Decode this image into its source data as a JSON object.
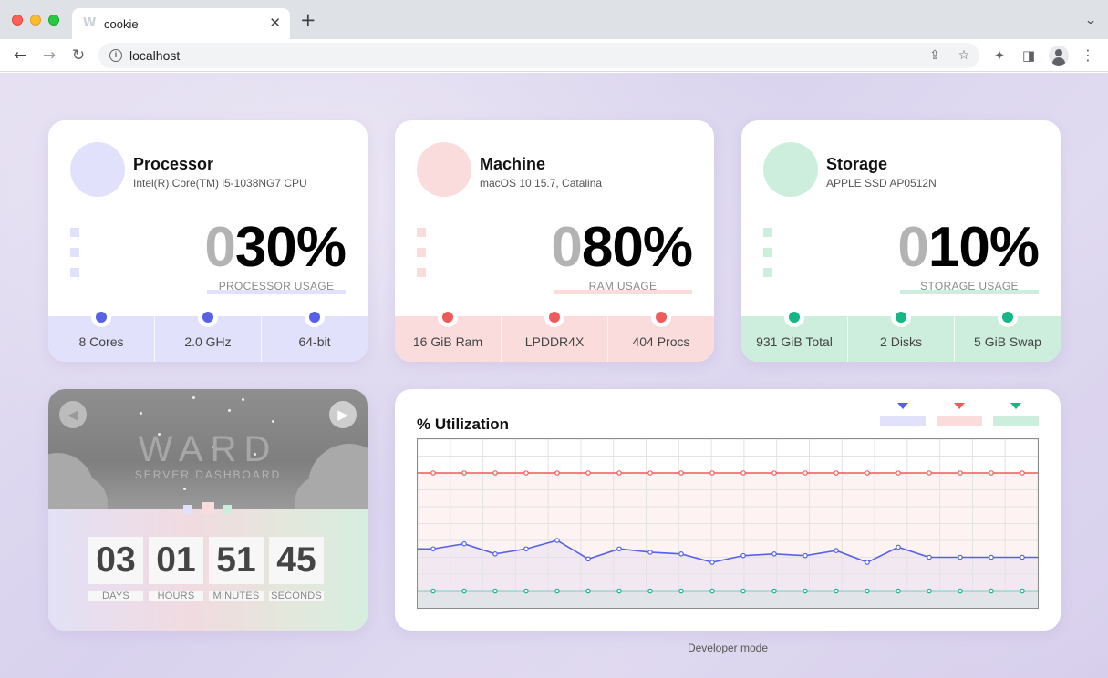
{
  "browser": {
    "tab_favicon": "W",
    "tab_title": "cookie",
    "url": "localhost",
    "icons": [
      "close-icon",
      "plus-icon",
      "chevron-down-icon",
      "back-arrow-icon",
      "forward-arrow-icon",
      "reload-icon",
      "info-icon",
      "share-icon",
      "star-icon",
      "puzzle-icon",
      "sidebar-icon",
      "profile-icon",
      "kebab-menu-icon"
    ]
  },
  "colors": {
    "processor": "#5661e5",
    "machine": "#ef5b5b",
    "storage": "#14b785",
    "processor_soft": "#e2e1fb",
    "machine_soft": "#fadcdc",
    "storage_soft": "#cdeedd"
  },
  "processor": {
    "title": "Processor",
    "subtitle": "Intel(R) Core(TM) i5-1038NG7 CPU",
    "usage_lead": "0",
    "usage_value": "30%",
    "usage_label": "PROCESSOR USAGE",
    "stats": [
      "8 Cores",
      "2.0 GHz",
      "64-bit"
    ]
  },
  "machine": {
    "title": "Machine",
    "subtitle": "macOS 10.15.7, Catalina",
    "usage_lead": "0",
    "usage_value": "80%",
    "usage_label": "RAM USAGE",
    "stats": [
      "16 GiB Ram",
      "LPDDR4X",
      "404 Procs"
    ]
  },
  "storage": {
    "title": "Storage",
    "subtitle": "APPLE SSD AP0512N",
    "usage_lead": "0",
    "usage_value": "10%",
    "usage_label": "STORAGE USAGE",
    "stats": [
      "931 GiB Total",
      "2 Disks",
      "5 GiB Swap"
    ]
  },
  "ward": {
    "title": "WARD",
    "subtitle": "SERVER DASHBOARD",
    "uptime": [
      {
        "value": "03",
        "label": "DAYS"
      },
      {
        "value": "01",
        "label": "HOURS"
      },
      {
        "value": "51",
        "label": "MINUTES"
      },
      {
        "value": "45",
        "label": "SECONDS"
      }
    ]
  },
  "utilization": {
    "title": "% Utilization"
  },
  "chart_data": {
    "type": "line",
    "title": "% Utilization",
    "ylim": [
      0,
      100
    ],
    "grid": true,
    "x": [
      1,
      2,
      3,
      4,
      5,
      6,
      7,
      8,
      9,
      10,
      11,
      12,
      13,
      14,
      15,
      16,
      17,
      18,
      19,
      20
    ],
    "series": [
      {
        "color": "#ef5b5b",
        "values": [
          80,
          80,
          80,
          80,
          80,
          80,
          80,
          80,
          80,
          80,
          80,
          80,
          80,
          80,
          80,
          80,
          80,
          80,
          80,
          80
        ]
      },
      {
        "color": "#5661e5",
        "values": [
          35,
          38,
          32,
          35,
          40,
          29,
          35,
          33,
          32,
          27,
          31,
          32,
          31,
          34,
          27,
          36,
          30,
          30,
          30,
          30
        ]
      },
      {
        "color": "#14b785",
        "values": [
          10,
          10,
          10,
          10,
          10,
          10,
          10,
          10,
          10,
          10,
          10,
          10,
          10,
          10,
          10,
          10,
          10,
          10,
          10,
          10
        ]
      }
    ]
  },
  "footer": {
    "developer_mode": "Developer mode"
  }
}
